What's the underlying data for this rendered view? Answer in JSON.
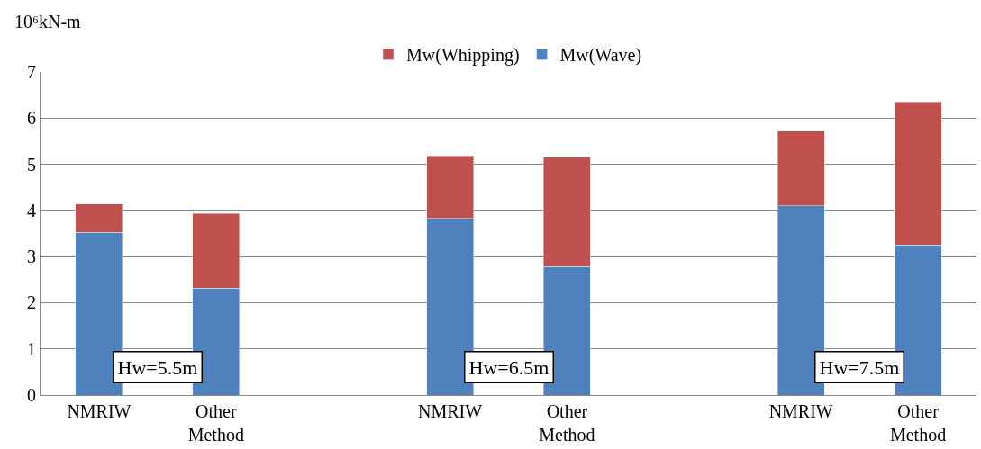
{
  "chart_data": {
    "type": "bar",
    "stacked": true,
    "ylabel": "10⁶kN-m",
    "categories": [
      "NMRIW",
      "Other Method",
      null,
      "NMRIW",
      "Other Method",
      null,
      "NMRIW",
      "Other Method"
    ],
    "series": [
      {
        "name": "Mw(Wave)",
        "color": "#4f81bd",
        "values": [
          3.52,
          2.32,
          null,
          3.83,
          2.78,
          null,
          4.1,
          3.25
        ]
      },
      {
        "name": "Mw(Whipping)",
        "color": "#c0504d",
        "values": [
          0.62,
          1.61,
          null,
          1.35,
          2.37,
          null,
          1.62,
          3.1
        ]
      }
    ],
    "ylim": [
      0,
      7
    ],
    "yticks": [
      0,
      1,
      2,
      3,
      4,
      5,
      6,
      7
    ],
    "grid": "y",
    "legend": "top",
    "annotations": [
      "Hw=5.5m",
      "Hw=6.5m",
      "Hw=7.5m"
    ]
  }
}
